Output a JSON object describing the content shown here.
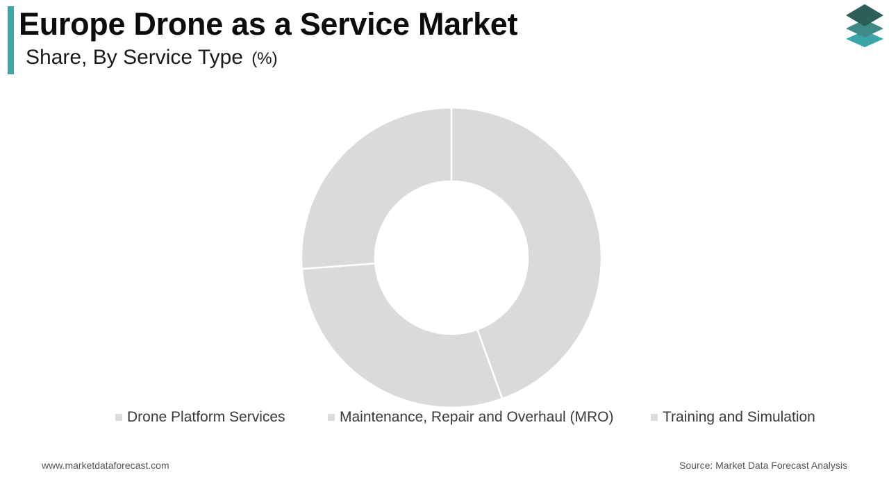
{
  "header": {
    "title": "Europe Drone as a Service Market",
    "subtitle": "Share, By Service Type",
    "subtitle_unit": "(%)"
  },
  "logo": {
    "icon": "stacked-layers-logo-icon",
    "colors": [
      "#2e5e5a",
      "#3f8a86",
      "#3aa6a8"
    ]
  },
  "colors": {
    "accent": "#3aa6a8",
    "slice_fill": "#dadada",
    "slice_border": "#ffffff",
    "legend_swatch": "#dcdcdc"
  },
  "chart_data": {
    "type": "pie",
    "variant": "donut",
    "title": "",
    "categories": [
      "Drone Platform Services",
      "Maintenance, Repair and Overhaul (MRO)",
      "Training and Simulation"
    ],
    "values": [
      44.5,
      29.3,
      26.2
    ],
    "unit": "%",
    "legend_position": "bottom",
    "data_labels": false
  },
  "footer": {
    "website": "www.marketdataforecast.com",
    "source": "Source: Market Data Forecast Analysis"
  }
}
